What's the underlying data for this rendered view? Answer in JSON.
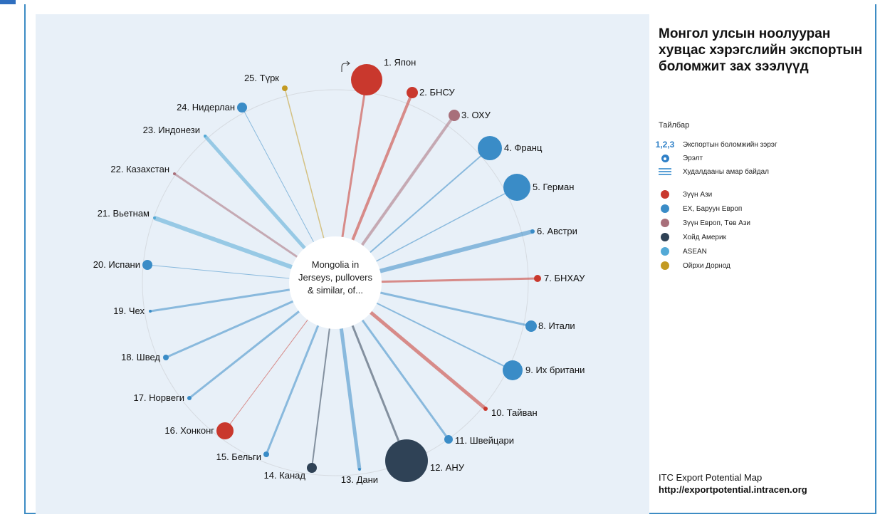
{
  "center_label_lines": [
    "Mongolia in",
    "Jerseys, pullovers",
    "& similar, of..."
  ],
  "colors": {
    "east_asia": "#c9382d",
    "eu_west": "#3a8cc7",
    "east_europe": "#a86f7a",
    "north_america": "#2f4256",
    "asean": "#53a9d6",
    "middle_east": "#c39a22"
  },
  "nodes": [
    {
      "label": "1. Япон",
      "region": "east_asia"
    },
    {
      "label": "2. БНСУ",
      "region": "east_asia"
    },
    {
      "label": "3. ОХУ",
      "region": "east_europe"
    },
    {
      "label": "4. Франц",
      "region": "eu_west"
    },
    {
      "label": "5. Герман",
      "region": "eu_west"
    },
    {
      "label": "6. Австри",
      "region": "eu_west"
    },
    {
      "label": "7. БНХАУ",
      "region": "east_asia"
    },
    {
      "label": "8. Итали",
      "region": "eu_west"
    },
    {
      "label": "9. Их британи",
      "region": "eu_west"
    },
    {
      "label": "10. Тайван",
      "region": "east_asia"
    },
    {
      "label": "11. Швейцари",
      "region": "eu_west"
    },
    {
      "label": "12. АНУ",
      "region": "north_america"
    },
    {
      "label": "13. Дани",
      "region": "eu_west"
    },
    {
      "label": "14. Канад",
      "region": "north_america"
    },
    {
      "label": "15. Бельги",
      "region": "eu_west"
    },
    {
      "label": "16. Хонконг",
      "region": "east_asia"
    },
    {
      "label": "17. Норвеги",
      "region": "eu_west"
    },
    {
      "label": "18. Швед",
      "region": "eu_west"
    },
    {
      "label": "19. Чех",
      "region": "eu_west"
    },
    {
      "label": "20. Испани",
      "region": "eu_west"
    },
    {
      "label": "21. Вьетнам",
      "region": "asean"
    },
    {
      "label": "22. Казахстан",
      "region": "east_europe"
    },
    {
      "label": "23. Индонези",
      "region": "asean"
    },
    {
      "label": "24. Нидерлан",
      "region": "eu_west"
    },
    {
      "label": "25. Түрк",
      "region": "middle_east"
    }
  ],
  "title": "Монгол улсын ноолууран хувцас хэрэгслийн экспортын боломжит зах зээлүүд",
  "legend": {
    "title": "Тайлбар",
    "rank_symbol": "1,2,3",
    "rank_label": "Экспортын боломжийн зэрэг",
    "demand_label": "Эрэлт",
    "ease_label": "Худалдааны амар байдал",
    "regions": [
      {
        "label": "Зүүн Ази",
        "color": "#c9382d"
      },
      {
        "label": "ЕХ, Баруун Европ",
        "color": "#3a8cc7"
      },
      {
        "label": "Зүүн Европ, Төв Ази",
        "color": "#a86f7a"
      },
      {
        "label": "Хойд Америк",
        "color": "#2f4256"
      },
      {
        "label": "ASEAN",
        "color": "#53a9d6"
      },
      {
        "label": "Ойрхи Дорнод",
        "color": "#c39a22"
      }
    ]
  },
  "footer": {
    "source": "ITC Export Potential Map",
    "url": "http://exportpotential.intracen.org"
  }
}
